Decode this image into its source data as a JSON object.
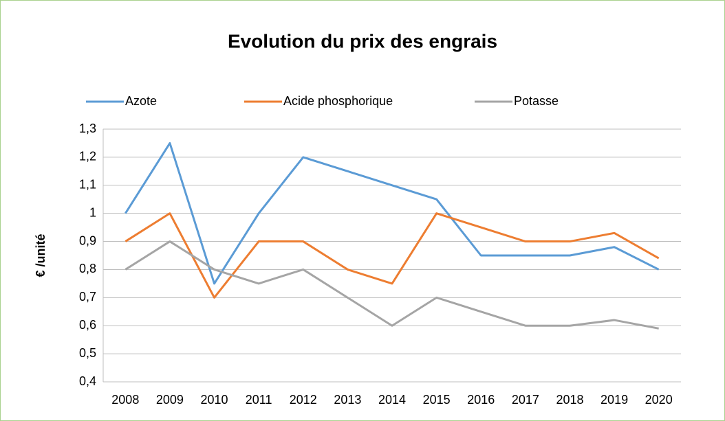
{
  "chart_data": {
    "type": "line",
    "title": "Evolution du prix des engrais",
    "y_label": "€ /unité",
    "categories": [
      "2008",
      "2009",
      "2010",
      "2011",
      "2012",
      "2013",
      "2014",
      "2015",
      "2016",
      "2017",
      "2018",
      "2019",
      "2020"
    ],
    "series": [
      {
        "name": "Azote",
        "color": "#5b9bd5",
        "values": [
          1.0,
          1.25,
          0.75,
          1.0,
          1.2,
          1.15,
          1.1,
          1.05,
          0.85,
          0.85,
          0.85,
          0.88,
          0.8
        ]
      },
      {
        "name": "Acide phosphorique",
        "color": "#ed7d31",
        "values": [
          0.9,
          1.0,
          0.7,
          0.9,
          0.9,
          0.8,
          0.75,
          1.0,
          0.95,
          0.9,
          0.9,
          0.93,
          0.84
        ]
      },
      {
        "name": "Potasse",
        "color": "#a5a5a5",
        "values": [
          0.8,
          0.9,
          0.8,
          0.75,
          0.8,
          0.7,
          0.6,
          0.7,
          0.65,
          0.6,
          0.6,
          0.62,
          0.59
        ]
      }
    ],
    "ylim": [
      0.4,
      1.3
    ],
    "yticks": [
      {
        "value": 0.4,
        "label": "0,4"
      },
      {
        "value": 0.5,
        "label": "0,5"
      },
      {
        "value": 0.6,
        "label": "0,6"
      },
      {
        "value": 0.7,
        "label": "0,7"
      },
      {
        "value": 0.8,
        "label": "0,8"
      },
      {
        "value": 0.9,
        "label": "0,9"
      },
      1,
      {
        "value": 1.1,
        "label": "1,1"
      },
      {
        "value": 1.2,
        "label": "1,2"
      },
      {
        "value": 1.3,
        "label": "1,3"
      }
    ],
    "grid": true,
    "legend": "top"
  }
}
